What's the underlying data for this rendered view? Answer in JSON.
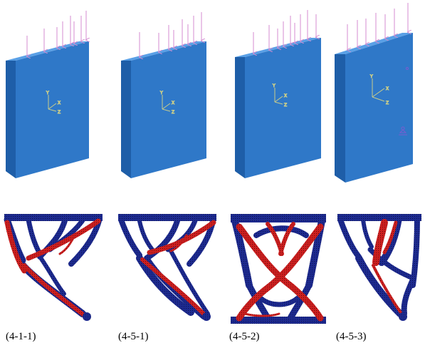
{
  "figure": {
    "panels": [
      {
        "label": "(4-1-1)",
        "load_arrows": 8,
        "has_bc_marker": false
      },
      {
        "label": "(4-5-1)",
        "load_arrows": 8,
        "has_bc_marker": false
      },
      {
        "label": "(4-5-2)",
        "load_arrows": 9,
        "has_bc_marker": false
      },
      {
        "label": "(4-5-3)",
        "load_arrows": 7,
        "has_bc_marker": true
      }
    ],
    "axis_triad": {
      "y": "Y",
      "x": "X",
      "z": "Z"
    },
    "colors": {
      "plate_front": "#2f78c8",
      "plate_side": "#1e5ea8",
      "plate_top": "#5aa0e6",
      "arrow": "#d48bd0",
      "triad": "#c8cc8a",
      "material_solid": "#cc1f1f",
      "material_boundary": "#1d2a8f",
      "background": "#ffffff"
    }
  }
}
